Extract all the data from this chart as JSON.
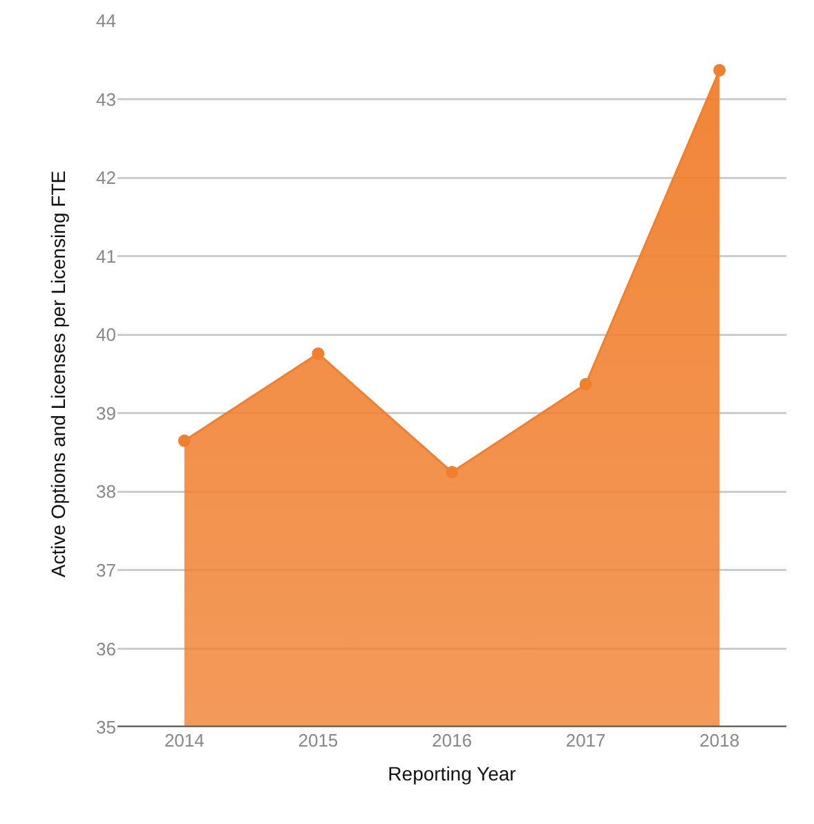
{
  "chart_data": {
    "type": "area",
    "xlabel": "Reporting Year",
    "ylabel": "Active Options and Licenses per Licensing FTE",
    "categories": [
      "2014",
      "2015",
      "2016",
      "2017",
      "2018"
    ],
    "series": [
      {
        "color": "#f07f2e",
        "values": [
          38.65,
          39.76,
          38.25,
          39.37,
          43.37
        ]
      }
    ],
    "ylim": [
      35,
      44
    ],
    "yticks": [
      35,
      36,
      37,
      38,
      39,
      40,
      41,
      42,
      43,
      44
    ],
    "grid": "y",
    "legend": false,
    "marker": "circle",
    "line_style": "solid"
  }
}
